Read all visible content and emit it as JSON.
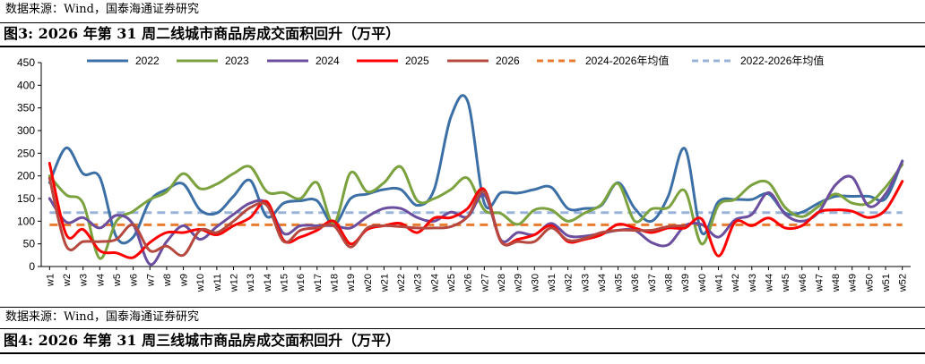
{
  "source_top": "数据来源：Wind，国泰海通证券研究",
  "figure_title": "图3:  2026 年第 31 周二线城市商品房成交面积回升（万平）",
  "source_bottom": "数据来源：Wind，国泰海通证券研究",
  "next_figure_title": "图4:  2026 年第 31 周三线城市商品房成交面积回升（万平）",
  "chart_data": {
    "type": "line",
    "title": "图3:  2026 年第 31 周二线城市商品房成交面积回升（万平）",
    "xlabel": "",
    "ylabel": "",
    "ylim": [
      0,
      450
    ],
    "yticks": [
      "0",
      "50",
      "100",
      "150",
      "200",
      "250",
      "300",
      "350",
      "400",
      "450"
    ],
    "grid": false,
    "legend_position": "top",
    "categories": [
      "w1",
      "w2",
      "w3",
      "w4",
      "w5",
      "w6",
      "w7",
      "w8",
      "w9",
      "w10",
      "w11",
      "w12",
      "w13",
      "w14",
      "w15",
      "w16",
      "w17",
      "w18",
      "w19",
      "w20",
      "w21",
      "w22",
      "w23",
      "w24",
      "w25",
      "w26",
      "w27",
      "w28",
      "w29",
      "w30",
      "w31",
      "w32",
      "w33",
      "w34",
      "w35",
      "w36",
      "w37",
      "w38",
      "w39",
      "w40",
      "w41",
      "w42",
      "w43",
      "w44",
      "w45",
      "w46",
      "w47",
      "w48",
      "w49",
      "w50",
      "w51",
      "w52"
    ],
    "series": [
      {
        "name": "2022",
        "color": "#3b6fa6",
        "style": "solid",
        "values": [
          185,
          262,
          205,
          197,
          65,
          65,
          145,
          170,
          182,
          125,
          118,
          155,
          190,
          110,
          140,
          145,
          145,
          92,
          150,
          160,
          170,
          170,
          135,
          170,
          330,
          365,
          140,
          163,
          162,
          170,
          175,
          128,
          128,
          135,
          185,
          128,
          100,
          155,
          260,
          75,
          143,
          148,
          148,
          160,
          118,
          120,
          140,
          155,
          155,
          155,
          150,
          233
        ]
      },
      {
        "name": "2023",
        "color": "#7ba23f",
        "style": "solid",
        "values": [
          200,
          158,
          140,
          18,
          100,
          122,
          148,
          165,
          205,
          172,
          182,
          205,
          220,
          165,
          163,
          150,
          185,
          95,
          207,
          165,
          185,
          220,
          145,
          150,
          170,
          195,
          125,
          117,
          93,
          125,
          125,
          100,
          118,
          137,
          183,
          100,
          127,
          130,
          167,
          50,
          135,
          148,
          180,
          185,
          130,
          110,
          133,
          160,
          140,
          140,
          175,
          225
        ]
      },
      {
        "name": "2024",
        "color": "#6b4f9e",
        "style": "solid",
        "values": [
          150,
          98,
          108,
          85,
          113,
          93,
          5,
          55,
          90,
          60,
          88,
          115,
          140,
          140,
          73,
          90,
          90,
          90,
          85,
          110,
          128,
          128,
          108,
          100,
          120,
          110,
          158,
          58,
          75,
          70,
          95,
          68,
          67,
          73,
          80,
          80,
          53,
          48,
          90,
          93,
          65,
          103,
          115,
          163,
          115,
          100,
          120,
          180,
          197,
          133,
          160,
          232
        ]
      },
      {
        "name": "2025",
        "color": "#ff0000",
        "style": "solid",
        "values": [
          228,
          70,
          82,
          35,
          30,
          20,
          53,
          75,
          75,
          82,
          70,
          90,
          108,
          143,
          58,
          65,
          80,
          100,
          50,
          82,
          90,
          95,
          75,
          107,
          108,
          128,
          170,
          55,
          60,
          70,
          90,
          55,
          60,
          70,
          93,
          85,
          75,
          85,
          85,
          105,
          23,
          98,
          90,
          107,
          85,
          90,
          120,
          125,
          122,
          108,
          125,
          188
        ]
      },
      {
        "name": "2026",
        "color": "#b5483f",
        "style": "solid",
        "values": [
          195,
          45,
          55,
          55,
          60,
          92,
          35,
          45,
          25,
          80,
          75,
          100,
          130,
          135,
          55,
          80,
          85,
          90,
          43,
          85,
          90,
          88,
          85,
          85,
          88,
          110,
          165,
          55,
          55,
          55,
          85,
          58,
          62,
          75,
          80,
          80,
          80,
          88,
          90,
          null,
          null,
          null,
          null,
          null,
          null,
          null,
          null,
          null,
          null,
          null,
          null,
          null
        ]
      },
      {
        "name": "2024-2026年均值",
        "color": "#e87b2f",
        "style": "dashed",
        "values": [
          92,
          92,
          92,
          92,
          92,
          92,
          92,
          92,
          92,
          92,
          92,
          92,
          92,
          92,
          92,
          92,
          92,
          92,
          92,
          92,
          92,
          92,
          92,
          92,
          92,
          92,
          92,
          92,
          92,
          92,
          92,
          92,
          92,
          92,
          92,
          92,
          92,
          92,
          92,
          92,
          92,
          92,
          92,
          92,
          92,
          92,
          92,
          92,
          92,
          92,
          92,
          92
        ]
      },
      {
        "name": "2022-2026年均值",
        "color": "#9ab3d8",
        "style": "dashed",
        "values": [
          119,
          119,
          119,
          119,
          119,
          119,
          119,
          119,
          119,
          119,
          119,
          119,
          119,
          119,
          119,
          119,
          119,
          119,
          119,
          119,
          119,
          119,
          119,
          119,
          119,
          119,
          119,
          119,
          119,
          119,
          119,
          119,
          119,
          119,
          119,
          119,
          119,
          119,
          119,
          119,
          119,
          119,
          119,
          119,
          119,
          119,
          119,
          119,
          119,
          119,
          119,
          119
        ]
      }
    ]
  }
}
